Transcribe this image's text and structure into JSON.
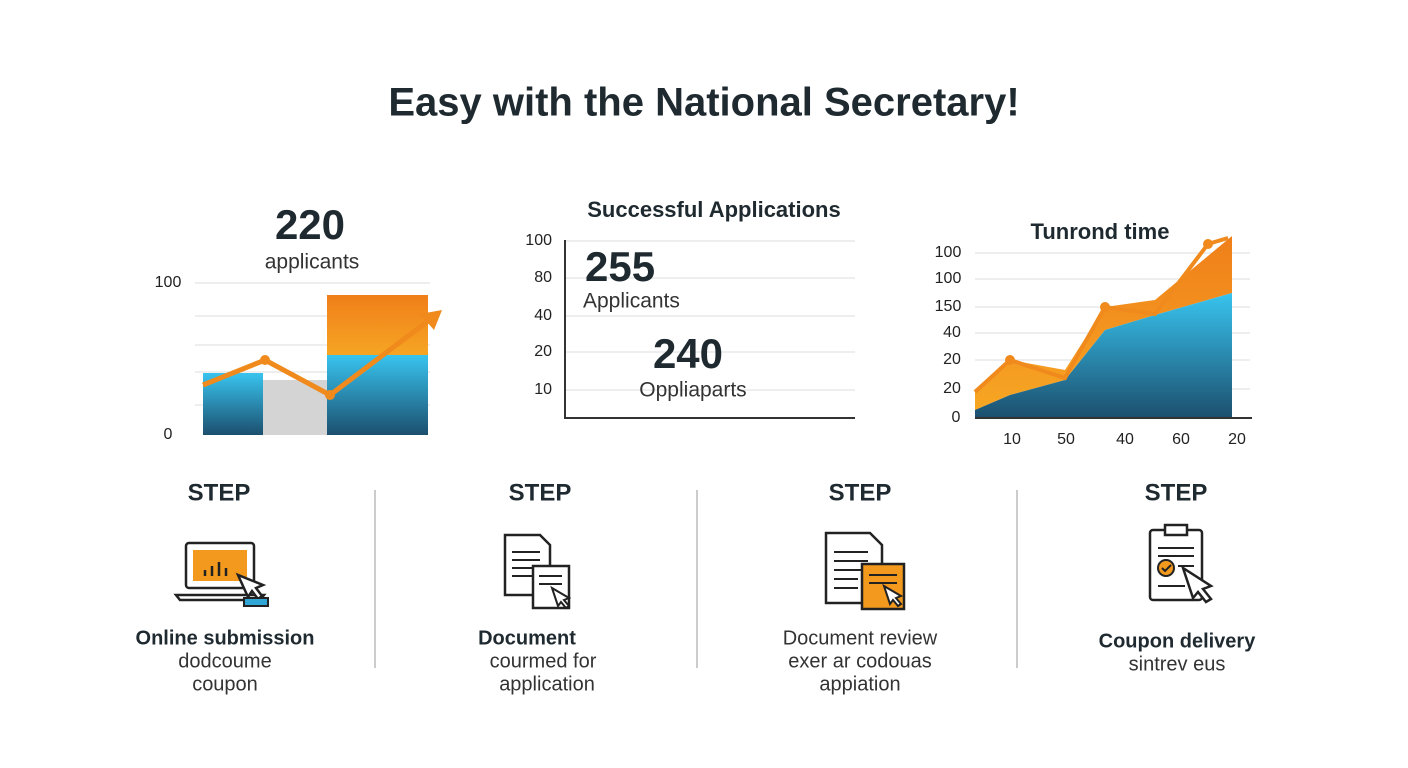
{
  "title": "Easy with the National Secretary!",
  "panels": [
    {
      "headline": "220",
      "caption": "applicants",
      "axis_labels": [
        "100",
        "0"
      ]
    },
    {
      "title": "Successful Applications",
      "axis_labels": [
        "100",
        "80",
        "40",
        "20",
        "10"
      ],
      "stats": [
        {
          "value": "255",
          "label": "Applicants"
        },
        {
          "value": "240",
          "label": "Oppliaparts"
        }
      ]
    },
    {
      "title": "Tunrond time",
      "y_labels": [
        "100",
        "100",
        "150",
        "40",
        "20",
        "20",
        "0"
      ],
      "x_labels": [
        "10",
        "50",
        "40",
        "60",
        "20"
      ]
    }
  ],
  "steps": [
    {
      "heading": "STEP",
      "lines": [
        "Online submission",
        "dodcoume",
        "coupon"
      ]
    },
    {
      "heading": "STEP",
      "lines": [
        "Document",
        "courmed for",
        "application"
      ]
    },
    {
      "heading": "STEP",
      "lines": [
        "Document review",
        "exer ar codouas",
        "appiation"
      ]
    },
    {
      "heading": "STEP",
      "lines": [
        "Coupon delivery",
        "sintrev eus"
      ]
    }
  ]
}
